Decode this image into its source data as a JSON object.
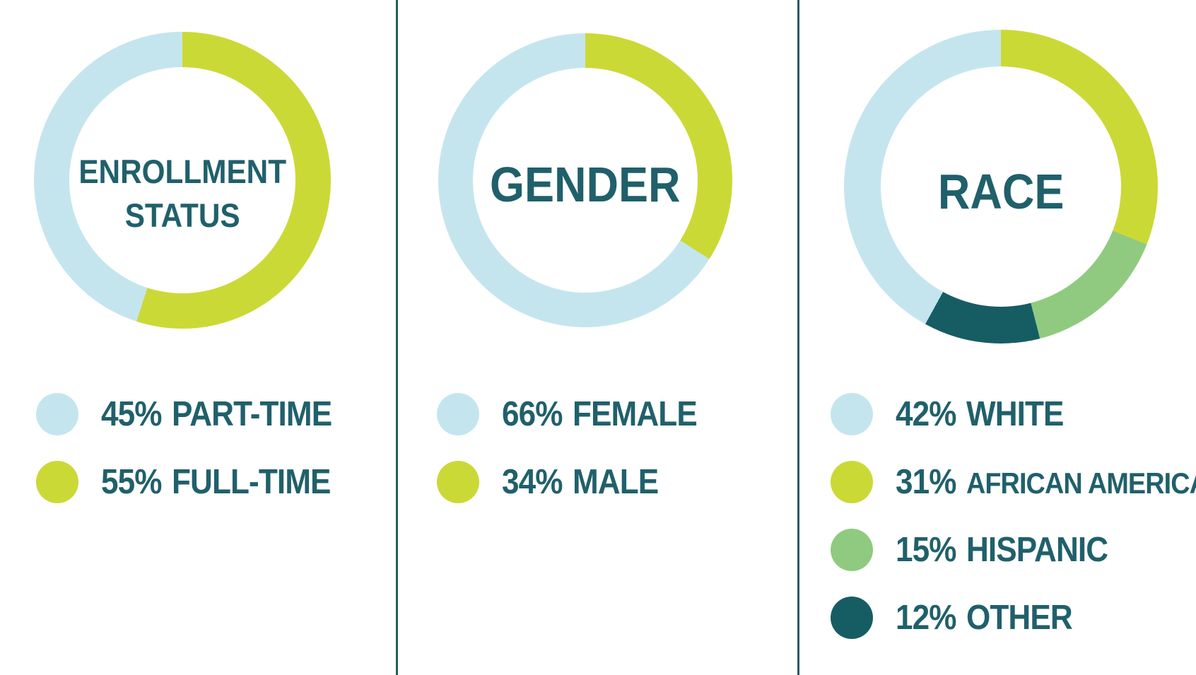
{
  "page": {
    "background": "#ffffff"
  },
  "colors": {
    "light_blue": "#c5e5ee",
    "green": "#cbd937",
    "medium_green": "#90ca80",
    "dark_teal": "#165d63",
    "text": "#20606b",
    "divider": "#265c63",
    "page_bg": "#ffffff"
  },
  "chart_data": [
    {
      "type": "pie",
      "variant": "donut",
      "title": "ENROLLMENT STATUS",
      "title_lines": {
        "0": "ENROLLMENT",
        "1": "STATUS"
      },
      "start_angle_deg": 0,
      "direction": "clockwise",
      "arcs": [
        {
          "label": "FULL-TIME",
          "value": 55,
          "color_key": "green"
        },
        {
          "label": "PART-TIME",
          "value": 45,
          "color_key": "light_blue"
        }
      ],
      "legend": [
        {
          "pct": "45%",
          "label": "PART-TIME",
          "color_key": "light_blue"
        },
        {
          "pct": "55%",
          "label": "FULL-TIME",
          "color_key": "green"
        }
      ]
    },
    {
      "type": "pie",
      "variant": "donut",
      "title": "GENDER",
      "title_lines": {
        "0": "GENDER"
      },
      "start_angle_deg": 0,
      "direction": "clockwise",
      "arcs": [
        {
          "label": "MALE",
          "value": 34,
          "color_key": "green"
        },
        {
          "label": "FEMALE",
          "value": 66,
          "color_key": "light_blue"
        }
      ],
      "legend": [
        {
          "pct": "66%",
          "label": "FEMALE",
          "color_key": "light_blue"
        },
        {
          "pct": "34%",
          "label": "MALE",
          "color_key": "green"
        }
      ]
    },
    {
      "type": "pie",
      "variant": "donut",
      "title": "RACE",
      "title_lines": {
        "0": "RACE"
      },
      "start_angle_deg": 0,
      "direction": "clockwise",
      "arcs": [
        {
          "label": "AFRICAN AMERICAN",
          "value": 31,
          "color_key": "green"
        },
        {
          "label": "HISPANIC",
          "value": 15,
          "color_key": "medium_green"
        },
        {
          "label": "OTHER",
          "value": 12,
          "color_key": "dark_teal"
        },
        {
          "label": "WHITE",
          "value": 42,
          "color_key": "light_blue"
        }
      ],
      "legend": [
        {
          "pct": "42%",
          "label": "WHITE",
          "color_key": "light_blue"
        },
        {
          "pct": "31%",
          "label": "AFRICAN AMERICAN",
          "color_key": "green"
        },
        {
          "pct": "15%",
          "label": "HISPANIC",
          "color_key": "medium_green"
        },
        {
          "pct": "12%",
          "label": "OTHER",
          "color_key": "dark_teal"
        }
      ]
    }
  ]
}
